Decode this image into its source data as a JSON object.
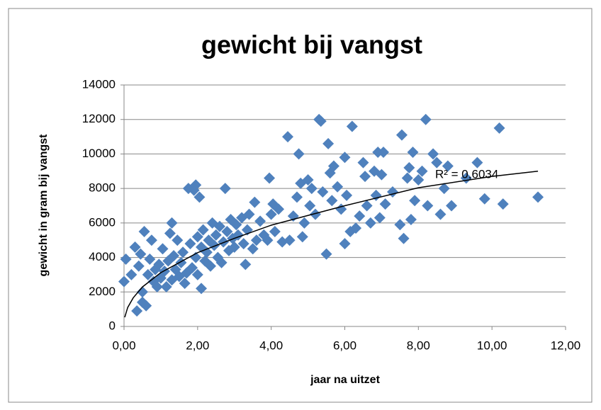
{
  "chart_data": {
    "type": "scatter",
    "title": "gewicht bij vangst",
    "xlabel": "jaar na uitzet",
    "ylabel": "gewicht in gram bij vangst",
    "xlim": [
      0,
      12
    ],
    "ylim": [
      0,
      14000
    ],
    "xticks": [
      {
        "value": 0,
        "label": "0,00"
      },
      {
        "value": 2,
        "label": "2,00"
      },
      {
        "value": 4,
        "label": "4,00"
      },
      {
        "value": 6,
        "label": "6,00"
      },
      {
        "value": 8,
        "label": "8,00"
      },
      {
        "value": 10,
        "label": "10,00"
      },
      {
        "value": 12,
        "label": "12,00"
      }
    ],
    "yticks": [
      0,
      2000,
      4000,
      6000,
      8000,
      10000,
      12000,
      14000
    ],
    "grid": true,
    "series": [
      {
        "color": "#4f81bd",
        "x": [
          0.0,
          0.05,
          0.2,
          0.3,
          0.35,
          0.4,
          0.45,
          0.5,
          0.5,
          0.55,
          0.6,
          0.65,
          0.7,
          0.75,
          0.8,
          0.85,
          0.9,
          0.95,
          1.0,
          1.05,
          1.1,
          1.15,
          1.2,
          1.25,
          1.3,
          1.3,
          1.35,
          1.4,
          1.45,
          1.5,
          1.55,
          1.6,
          1.65,
          1.7,
          1.75,
          1.8,
          1.85,
          1.9,
          1.95,
          1.95,
          2.0,
          2.0,
          2.05,
          2.1,
          2.1,
          2.15,
          2.2,
          2.25,
          2.3,
          2.35,
          2.4,
          2.45,
          2.5,
          2.55,
          2.6,
          2.65,
          2.7,
          2.75,
          2.8,
          2.85,
          2.9,
          2.95,
          3.0,
          3.05,
          3.1,
          3.2,
          3.25,
          3.3,
          3.35,
          3.4,
          3.5,
          3.55,
          3.6,
          3.7,
          3.8,
          3.9,
          3.95,
          4.0,
          4.05,
          4.1,
          4.2,
          4.3,
          4.45,
          4.5,
          4.6,
          4.7,
          4.75,
          4.8,
          4.85,
          4.9,
          5.0,
          5.05,
          5.1,
          5.2,
          5.3,
          5.35,
          5.4,
          5.5,
          5.55,
          5.6,
          5.65,
          5.7,
          5.8,
          5.9,
          6.0,
          6.0,
          6.05,
          6.15,
          6.2,
          6.3,
          6.4,
          6.5,
          6.55,
          6.6,
          6.7,
          6.8,
          6.85,
          6.9,
          6.95,
          7.0,
          7.05,
          7.1,
          7.3,
          7.5,
          7.55,
          7.6,
          7.7,
          7.75,
          7.8,
          7.85,
          7.9,
          8.0,
          8.1,
          8.2,
          8.25,
          8.4,
          8.5,
          8.6,
          8.7,
          8.8,
          8.9,
          9.3,
          9.6,
          9.8,
          10.2,
          10.3,
          11.25
        ],
        "values": [
          2600,
          3900,
          3000,
          4600,
          900,
          3500,
          4200,
          2000,
          1400,
          5500,
          1200,
          3000,
          3900,
          5000,
          2600,
          3300,
          2300,
          3600,
          2800,
          4500,
          3200,
          2300,
          3800,
          5400,
          6000,
          2700,
          4100,
          3300,
          5000,
          2900,
          3700,
          4300,
          2500,
          3100,
          8000,
          4800,
          3400,
          7900,
          8200,
          4000,
          5200,
          3000,
          7500,
          2200,
          4600,
          5600,
          3800,
          4300,
          5000,
          3500,
          6000,
          4700,
          5300,
          4000,
          5800,
          3700,
          4900,
          8000,
          5500,
          4400,
          6200,
          5100,
          4600,
          5900,
          5300,
          6300,
          4800,
          3600,
          5600,
          6500,
          4500,
          7200,
          5000,
          6100,
          5300,
          5000,
          8600,
          6500,
          7100,
          5500,
          6800,
          4900,
          11000,
          5000,
          6400,
          7500,
          10000,
          8300,
          5200,
          6000,
          8500,
          7000,
          8000,
          6500,
          12000,
          11900,
          7800,
          4200,
          10600,
          8900,
          7300,
          9300,
          8100,
          6800,
          4800,
          9800,
          7600,
          5500,
          11600,
          5700,
          6400,
          9500,
          8700,
          7000,
          6000,
          9000,
          7600,
          10100,
          6300,
          8800,
          10100,
          7100,
          7800,
          5900,
          11100,
          5100,
          8600,
          9200,
          6200,
          10100,
          7300,
          8500,
          9000,
          12000,
          7000,
          10000,
          9500,
          6500,
          8000,
          9300,
          7000,
          8600,
          9500,
          7400,
          11500,
          7100,
          7500
        ]
      }
    ],
    "trendline": {
      "x": [
        0.02,
        0.1,
        0.25,
        0.5,
        1,
        2,
        3,
        4,
        6,
        8,
        10,
        11.25
      ],
      "values": [
        530,
        1100,
        1660,
        2290,
        3120,
        4280,
        5110,
        5870,
        7000,
        8040,
        8700,
        9000
      ],
      "label": "R² = 0,6034"
    }
  }
}
